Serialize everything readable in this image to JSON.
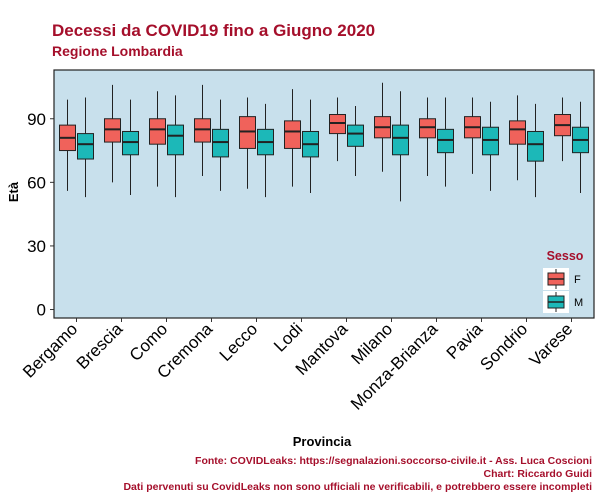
{
  "title": "Decessi da COVID19 fino a Giugno 2020",
  "subtitle": "Regione Lombardia",
  "caption": {
    "line1": "Fonte: COVIDLeaks: https://segnalazioni.soccorso-civile.it - Ass. Luca Coscioni",
    "line2": "Chart: Riccardo Guidi",
    "line3": "Dati pervenuti su CovidLeaks non sono ufficiali ne verificabili, e potrebbero essere incompleti"
  },
  "colors": {
    "F": "#f0625b",
    "M": "#1cb8b8",
    "panel": "#c8e0ec",
    "accent": "#a50f2b"
  },
  "chart_data": {
    "type": "boxplot",
    "title": "Decessi da COVID19 fino a Giugno 2020",
    "subtitle": "Regione Lombardia",
    "xlabel": "Provincia",
    "ylabel": "Età",
    "ylim": [
      -4,
      113
    ],
    "yticks": [
      0,
      30,
      60,
      90
    ],
    "legend": {
      "title": "Sesso",
      "entries": [
        "F",
        "M"
      ],
      "placement": "right"
    },
    "categories": [
      "Bergamo",
      "Brescia",
      "Como",
      "Cremona",
      "Lecco",
      "Lodi",
      "Mantova",
      "Milano",
      "Monza-Brianza",
      "Pavia",
      "Sondrio",
      "Varese"
    ],
    "series": [
      {
        "name": "F",
        "boxes": [
          {
            "min": 56,
            "q1": 75,
            "median": 81,
            "q3": 87,
            "max": 99
          },
          {
            "min": 60,
            "q1": 79,
            "median": 85,
            "q3": 90,
            "max": 106
          },
          {
            "min": 58,
            "q1": 78,
            "median": 85,
            "q3": 90,
            "max": 103
          },
          {
            "min": 63,
            "q1": 79,
            "median": 85,
            "q3": 90,
            "max": 106
          },
          {
            "min": 57,
            "q1": 76,
            "median": 84,
            "q3": 91,
            "max": 100
          },
          {
            "min": 58,
            "q1": 76,
            "median": 84,
            "q3": 89,
            "max": 104
          },
          {
            "min": 70,
            "q1": 83,
            "median": 88,
            "q3": 92,
            "max": 100
          },
          {
            "min": 65,
            "q1": 81,
            "median": 86,
            "q3": 91,
            "max": 107
          },
          {
            "min": 63,
            "q1": 81,
            "median": 86,
            "q3": 90,
            "max": 100
          },
          {
            "min": 64,
            "q1": 81,
            "median": 86,
            "q3": 91,
            "max": 100
          },
          {
            "min": 61,
            "q1": 78,
            "median": 85,
            "q3": 89,
            "max": 101
          },
          {
            "min": 70,
            "q1": 82,
            "median": 87,
            "q3": 92,
            "max": 100
          }
        ]
      },
      {
        "name": "M",
        "boxes": [
          {
            "min": 53,
            "q1": 71,
            "median": 78,
            "q3": 83,
            "max": 100
          },
          {
            "min": 54,
            "q1": 73,
            "median": 79,
            "q3": 84,
            "max": 99
          },
          {
            "min": 53,
            "q1": 73,
            "median": 82,
            "q3": 87,
            "max": 101
          },
          {
            "min": 56,
            "q1": 72,
            "median": 79,
            "q3": 85,
            "max": 99
          },
          {
            "min": 53,
            "q1": 73,
            "median": 79,
            "q3": 85,
            "max": 97
          },
          {
            "min": 55,
            "q1": 72,
            "median": 78,
            "q3": 84,
            "max": 99
          },
          {
            "min": 63,
            "q1": 77,
            "median": 83,
            "q3": 87,
            "max": 96
          },
          {
            "min": 51,
            "q1": 73,
            "median": 81,
            "q3": 87,
            "max": 103
          },
          {
            "min": 58,
            "q1": 74,
            "median": 80,
            "q3": 85,
            "max": 100
          },
          {
            "min": 56,
            "q1": 73,
            "median": 80,
            "q3": 86,
            "max": 98
          },
          {
            "min": 53,
            "q1": 70,
            "median": 78,
            "q3": 84,
            "max": 97
          },
          {
            "min": 55,
            "q1": 74,
            "median": 80,
            "q3": 86,
            "max": 98
          }
        ]
      }
    ]
  }
}
